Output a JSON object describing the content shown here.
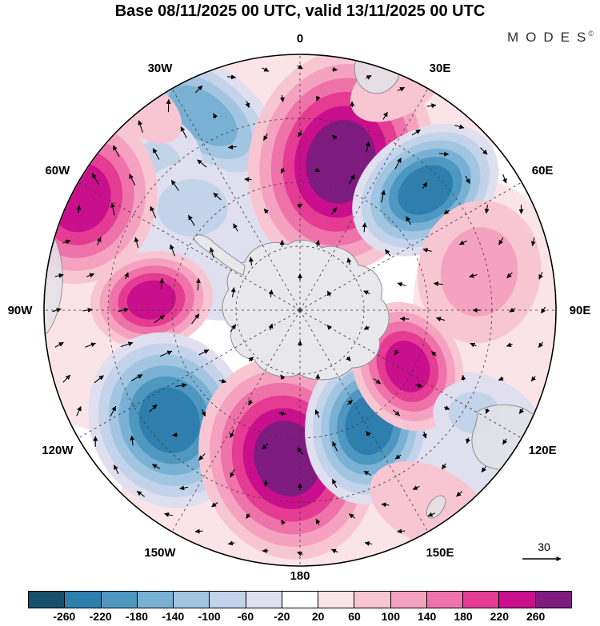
{
  "brand": {
    "name": "MODES",
    "mark": "©"
  },
  "chart_data": {
    "type": "heatmap",
    "title": "Base 08/11/2025 00 UTC, valid 13/11/2025 00 UTC",
    "projection": "south polar stereographic",
    "description": "Southern Hemisphere anomaly field (filled contours) with wind vector arrows, dashed graticule every 30 degrees longitude, Antarctica at the center",
    "longitude_labels": [
      "0",
      "30E",
      "60E",
      "90E",
      "120E",
      "150E",
      "180",
      "150W",
      "120W",
      "90W",
      "60W",
      "30W"
    ],
    "reference_vector_label": "30",
    "colorbar": {
      "tick_labels": [
        "-260",
        "-220",
        "-180",
        "-140",
        "-100",
        "-60",
        "-20",
        "20",
        "60",
        "100",
        "140",
        "180",
        "220",
        "260"
      ],
      "colors": [
        "#16506b",
        "#2e7fae",
        "#4e97c0",
        "#79b1d4",
        "#a2c6e2",
        "#c3d3e9",
        "#dfdff0",
        "#ffffff",
        "#fbe4e7",
        "#f8c6d3",
        "#f5a2c1",
        "#ef72a8",
        "#e43b93",
        "#c90f8c",
        "#7e1b7f"
      ]
    },
    "anomaly_centers": [
      {
        "fx": 0.05,
        "fy": -0.78,
        "rx": 0.78,
        "ry": 0.32,
        "rot": 0,
        "rings": [
          8
        ]
      },
      {
        "fx": -0.78,
        "fy": -0.15,
        "rx": 0.38,
        "ry": 0.62,
        "rot": 0,
        "rings": [
          8
        ]
      },
      {
        "fx": -0.08,
        "fy": 0.72,
        "rx": 0.62,
        "ry": 0.33,
        "rot": 0,
        "rings": [
          8
        ]
      },
      {
        "fx": 0.74,
        "fy": 0.02,
        "rx": 0.3,
        "ry": 0.52,
        "rot": 0,
        "rings": [
          8
        ]
      },
      {
        "fx": -0.3,
        "fy": -0.32,
        "rx": 0.42,
        "ry": 0.36,
        "rot": 0,
        "rings": [
          6
        ]
      },
      {
        "fx": 0.62,
        "fy": 0.52,
        "rx": 0.34,
        "ry": 0.28,
        "rot": 0,
        "rings": [
          6
        ]
      },
      {
        "fx": 0.1,
        "fy": 0.3,
        "rx": 0.3,
        "ry": 0.22,
        "rot": 0,
        "rings": [
          8
        ]
      },
      {
        "fx": -0.38,
        "fy": -0.76,
        "rx": 0.36,
        "ry": 0.2,
        "rot": 38,
        "rings": [
          6,
          5,
          4,
          3
        ]
      },
      {
        "fx": -0.58,
        "fy": -0.5,
        "rx": 0.2,
        "ry": 0.26,
        "rot": 15,
        "rings": [
          6,
          5
        ]
      },
      {
        "fx": -0.42,
        "fy": -0.4,
        "rx": 0.22,
        "ry": 0.18,
        "rot": 0,
        "rings": [
          6,
          5
        ]
      },
      {
        "fx": 0.16,
        "fy": -0.58,
        "rx": 0.36,
        "ry": 0.44,
        "rot": 12,
        "rings": [
          9,
          10,
          11,
          12,
          13,
          14
        ]
      },
      {
        "fx": 0.49,
        "fy": -0.47,
        "rx": 0.31,
        "ry": 0.23,
        "rot": -35,
        "rings": [
          6,
          5,
          4,
          3,
          2,
          1
        ]
      },
      {
        "fx": -0.86,
        "fy": -0.44,
        "rx": 0.3,
        "ry": 0.34,
        "rot": 15,
        "rings": [
          9,
          10,
          11,
          12,
          13
        ]
      },
      {
        "fx": -0.58,
        "fy": -0.04,
        "rx": 0.24,
        "ry": 0.19,
        "rot": -10,
        "rings": [
          9,
          10,
          11,
          12,
          13
        ]
      },
      {
        "fx": -0.51,
        "fy": 0.43,
        "rx": 0.31,
        "ry": 0.35,
        "rot": -25,
        "rings": [
          6,
          5,
          4,
          3,
          2,
          1
        ]
      },
      {
        "fx": -0.05,
        "fy": 0.58,
        "rx": 0.34,
        "ry": 0.4,
        "rot": -18,
        "rings": [
          9,
          10,
          11,
          12,
          13,
          14
        ]
      },
      {
        "fx": 0.27,
        "fy": 0.45,
        "rx": 0.25,
        "ry": 0.31,
        "rot": 8,
        "rings": [
          6,
          5,
          4,
          3,
          2,
          1
        ]
      },
      {
        "fx": 0.42,
        "fy": 0.22,
        "rx": 0.21,
        "ry": 0.26,
        "rot": -25,
        "rings": [
          9,
          10,
          11,
          12,
          13
        ]
      },
      {
        "fx": 0.7,
        "fy": -0.15,
        "rx": 0.24,
        "ry": 0.28,
        "rot": 10,
        "rings": [
          9,
          10
        ]
      },
      {
        "fx": 0.38,
        "fy": -0.88,
        "rx": 0.2,
        "ry": 0.12,
        "rot": -30,
        "rings": [
          9
        ]
      },
      {
        "fx": -0.6,
        "fy": -0.78,
        "rx": 0.16,
        "ry": 0.1,
        "rot": 40,
        "rings": [
          9
        ]
      },
      {
        "fx": 0.5,
        "fy": 0.76,
        "rx": 0.24,
        "ry": 0.15,
        "rot": 25,
        "rings": [
          9
        ]
      },
      {
        "fx": 0.68,
        "fy": 0.4,
        "rx": 0.16,
        "ry": 0.13,
        "rot": 0,
        "rings": [
          6,
          5
        ]
      }
    ]
  }
}
